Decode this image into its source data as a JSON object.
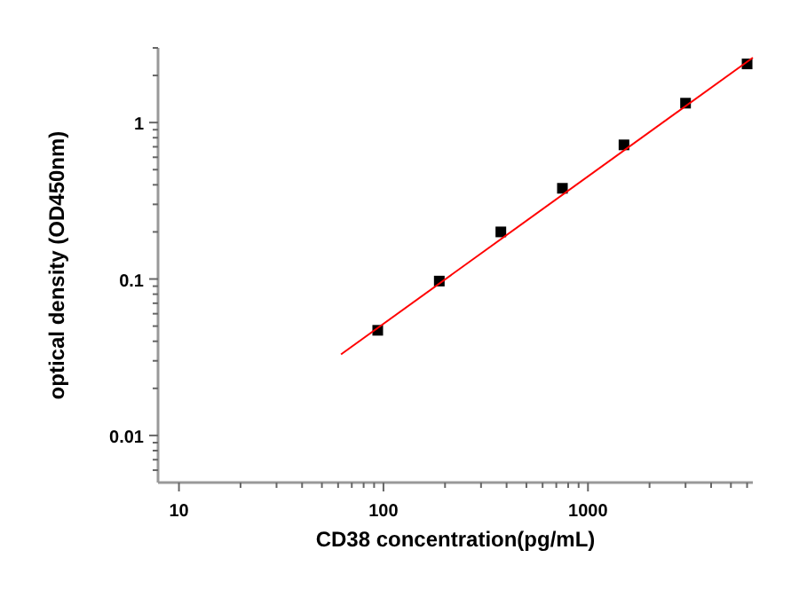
{
  "chart_data": {
    "type": "scatter",
    "xlabel": "CD38 concentration(pg/mL)",
    "ylabel": "optical density (OD450nm)",
    "log": "xy",
    "grid": false,
    "marker": "square",
    "xlim": [
      7.9,
      6400
    ],
    "xticks": [
      10,
      {
        "value": 20,
        "label": null
      },
      {
        "value": 30,
        "label": null
      },
      {
        "value": 40,
        "label": null
      },
      {
        "value": 50,
        "label": null
      },
      {
        "value": 60,
        "label": null
      },
      {
        "value": 70,
        "label": null
      },
      {
        "value": 80,
        "label": null
      },
      {
        "value": 90,
        "label": null
      },
      100,
      {
        "value": 200,
        "label": null
      },
      {
        "value": 300,
        "label": null
      },
      {
        "value": 400,
        "label": null
      },
      {
        "value": 500,
        "label": null
      },
      {
        "value": 600,
        "label": null
      },
      {
        "value": 700,
        "label": null
      },
      {
        "value": 800,
        "label": null
      },
      {
        "value": 900,
        "label": null
      },
      1000,
      {
        "value": 2000,
        "label": null
      },
      {
        "value": 3000,
        "label": null
      },
      {
        "value": 4000,
        "label": null
      },
      {
        "value": 5000,
        "label": null
      },
      {
        "value": 6000,
        "label": null
      }
    ],
    "ylim": [
      0.005,
      3
    ],
    "yticks": [
      {
        "value": 0.006,
        "label": null
      },
      {
        "value": 0.007,
        "label": null
      },
      {
        "value": 0.008,
        "label": null
      },
      {
        "value": 0.009,
        "label": null
      },
      0.01,
      {
        "value": 0.02,
        "label": null
      },
      {
        "value": 0.03,
        "label": null
      },
      {
        "value": 0.04,
        "label": null
      },
      {
        "value": 0.05,
        "label": null
      },
      {
        "value": 0.06,
        "label": null
      },
      {
        "value": 0.07,
        "label": null
      },
      {
        "value": 0.08,
        "label": null
      },
      {
        "value": 0.09,
        "label": null
      },
      0.1,
      {
        "value": 0.2,
        "label": null
      },
      {
        "value": 0.3,
        "label": null
      },
      {
        "value": 0.4,
        "label": null
      },
      {
        "value": 0.5,
        "label": null
      },
      {
        "value": 0.6,
        "label": null
      },
      {
        "value": 0.7,
        "label": null
      },
      {
        "value": 0.8,
        "label": null
      },
      {
        "value": 0.9,
        "label": null
      },
      1,
      {
        "value": 2,
        "label": null
      },
      {
        "value": 3,
        "label": null
      }
    ],
    "series": [
      {
        "color": "#000000",
        "x": [
          93.75,
          187.5,
          375,
          750,
          1500,
          3000,
          6000
        ],
        "values": [
          0.047,
          0.097,
          0.2,
          0.38,
          0.72,
          1.33,
          2.37
        ]
      },
      {
        "type": "line",
        "color": "#ff0000",
        "line_style": "solid",
        "marker": "none",
        "x": [
          62,
          6400
        ],
        "values": [
          0.033,
          2.6
        ]
      }
    ]
  }
}
